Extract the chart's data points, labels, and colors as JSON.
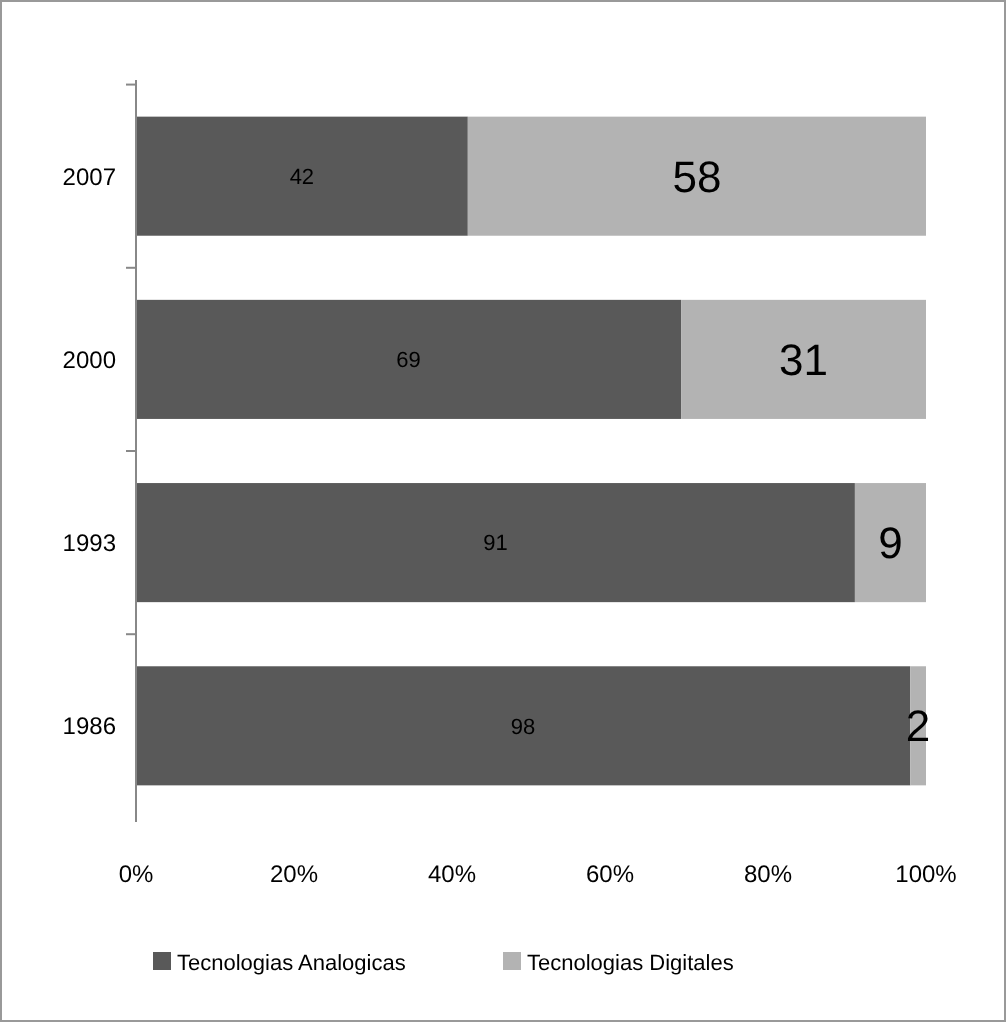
{
  "chart_data": {
    "type": "bar",
    "orientation": "horizontal",
    "stacked": true,
    "categories": [
      "2007",
      "2000",
      "1993",
      "1986"
    ],
    "series": [
      {
        "name": "Tecnologias Analogicas",
        "color": "#595959",
        "values": [
          42,
          69,
          91,
          98
        ]
      },
      {
        "name": "Tecnologias Digitales",
        "color": "#b3b3b3",
        "values": [
          58,
          31,
          9,
          2
        ]
      }
    ],
    "xlim": [
      0,
      100
    ],
    "xticks": [
      {
        "value": 0,
        "label": "0%"
      },
      {
        "value": 20,
        "label": "20%"
      },
      {
        "value": 40,
        "label": "40%"
      },
      {
        "value": 60,
        "label": "60%"
      },
      {
        "value": 80,
        "label": "80%"
      },
      {
        "value": 100,
        "label": "100%"
      }
    ],
    "data_labels": true,
    "legend": "bottom",
    "grid": false
  }
}
